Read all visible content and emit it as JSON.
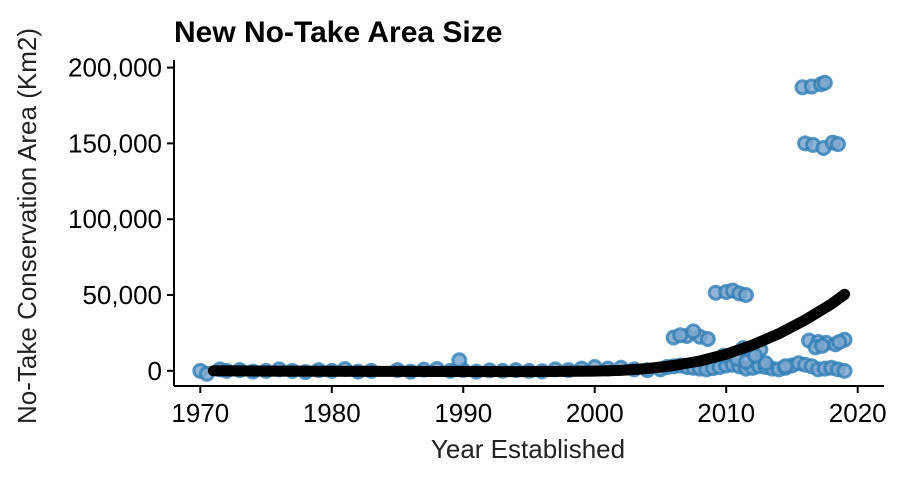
{
  "chart_data": {
    "type": "scatter",
    "title": "New No-Take Area Size",
    "xlabel": "Year Established",
    "ylabel": "No-Take Conservation Area (Km2)",
    "xlim": [
      1968,
      2022
    ],
    "ylim": [
      -10000,
      205000
    ],
    "x_ticks": [
      1970,
      1980,
      1990,
      2000,
      2010,
      2020
    ],
    "y_ticks": [
      0,
      50000,
      100000,
      150000,
      200000
    ],
    "y_tick_labels": [
      "0",
      "50,000",
      "100,000",
      "150,000",
      "200,000"
    ],
    "grid": false,
    "legend": "none",
    "colors": {
      "point_fill": "#7fa7cf",
      "point_stroke": "#2f7fb8",
      "trend": "#000000"
    },
    "series": [
      {
        "kind": "points",
        "x": [
          1970,
          1970.5,
          1971.5,
          1972,
          1973,
          1974,
          1975,
          1976,
          1977,
          1978,
          1979,
          1980,
          1981,
          1982,
          1983,
          1985,
          1986,
          1987,
          1988,
          1989,
          1990,
          1991,
          1992,
          1993,
          1994,
          1995,
          1996,
          1997,
          1998,
          1999,
          2000,
          2001,
          2002,
          2003,
          2004,
          2005,
          2005.5,
          2006,
          2006.5,
          2007,
          2007.5,
          2008,
          2008.5,
          2009,
          2009.5,
          2010,
          2010.5,
          2011,
          2011.5,
          2012,
          2012.5,
          2013,
          2013.5,
          2014,
          2014.5,
          2015,
          2015.5,
          2016,
          2016.5,
          2017,
          2017.5,
          2018,
          2018.5,
          2019,
          2006,
          2007,
          2008,
          2007.5,
          2006.5,
          2008.6,
          2009.2,
          2010,
          2010.5,
          2011,
          2011.5,
          2009.8,
          2010.8,
          2011.3,
          2012,
          2012.6,
          2013,
          2011.5,
          2016.3,
          2017,
          2017.6,
          2018.3,
          2019,
          2016.8,
          2017.3,
          2018.6,
          2015.8,
          2016.5,
          2017.2,
          2017.5,
          2016,
          2016.6,
          2017.4,
          2018.1,
          2018.5,
          1989.7,
          2012.2,
          2014.5
        ],
        "y": [
          0,
          -2000,
          1000,
          0,
          500,
          -500,
          0,
          1000,
          0,
          -800,
          500,
          0,
          1200,
          -500,
          0,
          500,
          -500,
          800,
          1200,
          0,
          500,
          -500,
          300,
          0,
          500,
          0,
          -300,
          1000,
          500,
          1500,
          2500,
          1500,
          2000,
          1000,
          500,
          1000,
          2500,
          3000,
          3500,
          2500,
          2000,
          1500,
          1000,
          1800,
          2500,
          3500,
          4000,
          3000,
          1500,
          2000,
          3000,
          2500,
          1500,
          1000,
          2000,
          3500,
          5000,
          4000,
          3000,
          1000,
          1500,
          2000,
          1000,
          0,
          22000,
          23000,
          22500,
          26000,
          23500,
          21000,
          51500,
          52000,
          53000,
          51000,
          50000,
          10000,
          8000,
          15000,
          12000,
          14000,
          5000,
          6000,
          20000,
          19000,
          18500,
          17500,
          20500,
          15500,
          16500,
          19000,
          187000,
          187500,
          189000,
          190000,
          150000,
          149000,
          147000,
          150500,
          149500,
          7000,
          10000,
          3000
        ]
      },
      {
        "kind": "trend",
        "x": [
          1971,
          1975,
          1980,
          1985,
          1990,
          1995,
          2000,
          2002,
          2004,
          2006,
          2008,
          2010,
          2012,
          2014,
          2016,
          2018,
          2019
        ],
        "y": [
          0,
          -150,
          -300,
          -400,
          -450,
          -500,
          -200,
          300,
          1500,
          3500,
          6500,
          11000,
          17000,
          24500,
          33500,
          44000,
          50500
        ]
      }
    ]
  }
}
